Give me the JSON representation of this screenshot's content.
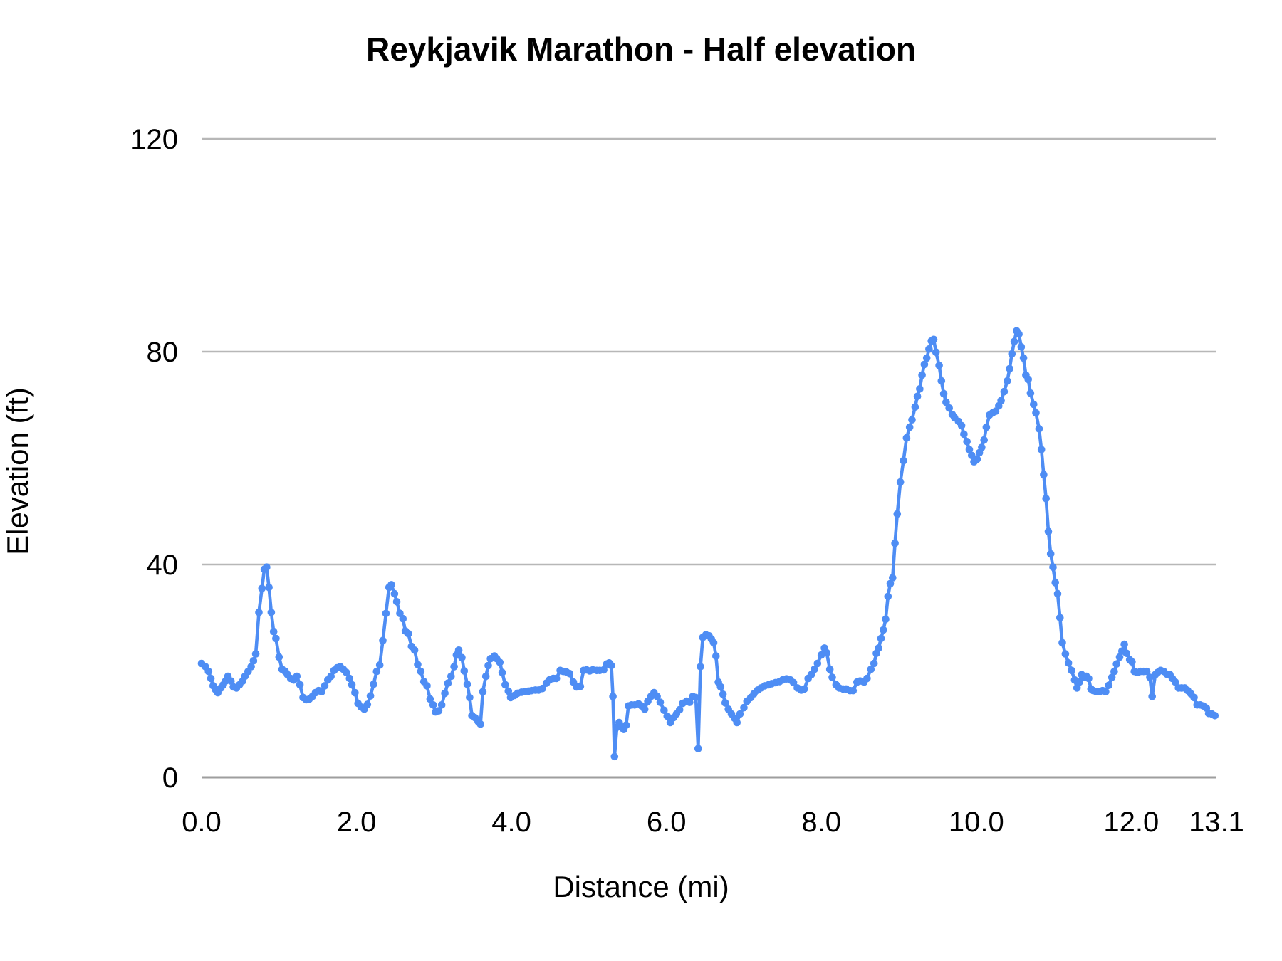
{
  "chart": {
    "title": "Reykjavik Marathon - Half elevation",
    "y_axis": {
      "title": "Elevation (ft)",
      "tick_labels": [
        "0",
        "40",
        "80",
        "120"
      ]
    },
    "x_axis": {
      "title": "Distance (mi)",
      "tick_labels": [
        "0.0",
        "2.0",
        "4.0",
        "6.0",
        "8.0",
        "10.0",
        "12.0",
        "13.1"
      ]
    }
  },
  "chart_data": {
    "type": "line",
    "title": "Reykjavik Marathon - Half elevation",
    "xlabel": "Distance (mi)",
    "ylabel": "Elevation (ft)",
    "xlim": [
      0,
      13.1
    ],
    "ylim": [
      0,
      120
    ],
    "grid": "horizontal-only",
    "legend": "none",
    "marker": "circle",
    "line_color": "#4e8df4",
    "gridline_color": "#b7b7b7",
    "baseline_color": "#9e9e9e",
    "y_gridlines": [
      0,
      40,
      80,
      120
    ],
    "x_ticks": [
      {
        "value": 0.0,
        "label": "0.0"
      },
      {
        "value": 2.0,
        "label": "2.0"
      },
      {
        "value": 4.0,
        "label": "4.0"
      },
      {
        "value": 6.0,
        "label": "6.0"
      },
      {
        "value": 8.0,
        "label": "8.0"
      },
      {
        "value": 10.0,
        "label": "10.0"
      },
      {
        "value": 12.0,
        "label": "12.0"
      },
      {
        "value": 13.1,
        "label": "13.1"
      }
    ],
    "points": [
      [
        0.0,
        21.4
      ],
      [
        0.05,
        20.8
      ],
      [
        0.09,
        19.9
      ],
      [
        0.12,
        18.6
      ],
      [
        0.15,
        17.2
      ],
      [
        0.18,
        16.5
      ],
      [
        0.21,
        15.9
      ],
      [
        0.25,
        16.8
      ],
      [
        0.28,
        17.4
      ],
      [
        0.31,
        18.1
      ],
      [
        0.34,
        19.0
      ],
      [
        0.38,
        18.1
      ],
      [
        0.41,
        17.0
      ],
      [
        0.45,
        16.8
      ],
      [
        0.49,
        17.4
      ],
      [
        0.53,
        18.1
      ],
      [
        0.56,
        19.0
      ],
      [
        0.6,
        19.9
      ],
      [
        0.64,
        20.8
      ],
      [
        0.67,
        21.9
      ],
      [
        0.7,
        23.2
      ],
      [
        0.74,
        31.0
      ],
      [
        0.78,
        35.5
      ],
      [
        0.81,
        39.1
      ],
      [
        0.84,
        39.5
      ],
      [
        0.87,
        35.7
      ],
      [
        0.9,
        31.0
      ],
      [
        0.93,
        27.4
      ],
      [
        0.96,
        26.1
      ],
      [
        1.0,
        22.6
      ],
      [
        1.04,
        20.3
      ],
      [
        1.08,
        19.9
      ],
      [
        1.11,
        19.3
      ],
      [
        1.15,
        18.6
      ],
      [
        1.19,
        18.3
      ],
      [
        1.23,
        19.0
      ],
      [
        1.27,
        17.4
      ],
      [
        1.31,
        15.0
      ],
      [
        1.35,
        14.6
      ],
      [
        1.39,
        14.7
      ],
      [
        1.43,
        15.2
      ],
      [
        1.47,
        15.9
      ],
      [
        1.51,
        16.3
      ],
      [
        1.55,
        16.1
      ],
      [
        1.59,
        17.2
      ],
      [
        1.63,
        18.3
      ],
      [
        1.67,
        19.0
      ],
      [
        1.71,
        20.1
      ],
      [
        1.75,
        20.6
      ],
      [
        1.79,
        20.8
      ],
      [
        1.83,
        20.3
      ],
      [
        1.87,
        19.7
      ],
      [
        1.91,
        18.6
      ],
      [
        1.94,
        17.4
      ],
      [
        1.98,
        15.9
      ],
      [
        2.02,
        13.9
      ],
      [
        2.06,
        13.2
      ],
      [
        2.1,
        12.8
      ],
      [
        2.14,
        13.7
      ],
      [
        2.18,
        15.3
      ],
      [
        2.22,
        17.5
      ],
      [
        2.26,
        19.9
      ],
      [
        2.3,
        21.1
      ],
      [
        2.34,
        25.7
      ],
      [
        2.38,
        30.8
      ],
      [
        2.42,
        35.7
      ],
      [
        2.45,
        36.2
      ],
      [
        2.49,
        34.5
      ],
      [
        2.52,
        33.0
      ],
      [
        2.56,
        30.8
      ],
      [
        2.6,
        29.8
      ],
      [
        2.63,
        27.5
      ],
      [
        2.67,
        27.0
      ],
      [
        2.71,
        24.6
      ],
      [
        2.75,
        23.9
      ],
      [
        2.79,
        21.2
      ],
      [
        2.83,
        19.9
      ],
      [
        2.87,
        18.0
      ],
      [
        2.91,
        17.2
      ],
      [
        2.95,
        14.7
      ],
      [
        2.99,
        13.6
      ],
      [
        3.02,
        12.3
      ],
      [
        3.06,
        12.5
      ],
      [
        3.1,
        13.6
      ],
      [
        3.14,
        15.8
      ],
      [
        3.18,
        17.7
      ],
      [
        3.22,
        19.0
      ],
      [
        3.26,
        20.8
      ],
      [
        3.29,
        23.0
      ],
      [
        3.32,
        23.9
      ],
      [
        3.36,
        22.5
      ],
      [
        3.39,
        20.0
      ],
      [
        3.43,
        17.5
      ],
      [
        3.46,
        15.0
      ],
      [
        3.49,
        11.6
      ],
      [
        3.53,
        11.2
      ],
      [
        3.57,
        10.5
      ],
      [
        3.6,
        10.0
      ],
      [
        3.63,
        16.1
      ],
      [
        3.67,
        19.0
      ],
      [
        3.7,
        21.0
      ],
      [
        3.73,
        22.3
      ],
      [
        3.78,
        22.8
      ],
      [
        3.81,
        22.3
      ],
      [
        3.85,
        21.6
      ],
      [
        3.88,
        19.7
      ],
      [
        3.92,
        17.4
      ],
      [
        3.96,
        16.2
      ],
      [
        3.99,
        15.0
      ],
      [
        4.04,
        15.4
      ],
      [
        4.08,
        15.8
      ],
      [
        4.13,
        16.0
      ],
      [
        4.17,
        16.1
      ],
      [
        4.22,
        16.2
      ],
      [
        4.26,
        16.3
      ],
      [
        4.31,
        16.4
      ],
      [
        4.35,
        16.4
      ],
      [
        4.4,
        16.7
      ],
      [
        4.45,
        17.7
      ],
      [
        4.49,
        18.3
      ],
      [
        4.54,
        18.6
      ],
      [
        4.58,
        18.6
      ],
      [
        4.63,
        20.1
      ],
      [
        4.67,
        19.9
      ],
      [
        4.71,
        19.8
      ],
      [
        4.75,
        19.5
      ],
      [
        4.8,
        17.9
      ],
      [
        4.84,
        17.0
      ],
      [
        4.89,
        17.1
      ],
      [
        4.93,
        20.1
      ],
      [
        4.97,
        20.2
      ],
      [
        5.01,
        20.0
      ],
      [
        5.05,
        20.2
      ],
      [
        5.1,
        20.1
      ],
      [
        5.14,
        20.1
      ],
      [
        5.19,
        20.2
      ],
      [
        5.23,
        21.3
      ],
      [
        5.26,
        21.5
      ],
      [
        5.29,
        21.0
      ],
      [
        5.31,
        15.2
      ],
      [
        5.33,
        3.9
      ],
      [
        5.36,
        9.4
      ],
      [
        5.39,
        10.3
      ],
      [
        5.42,
        9.4
      ],
      [
        5.45,
        9.0
      ],
      [
        5.48,
        9.8
      ],
      [
        5.51,
        13.4
      ],
      [
        5.55,
        13.6
      ],
      [
        5.59,
        13.6
      ],
      [
        5.64,
        13.8
      ],
      [
        5.68,
        13.4
      ],
      [
        5.72,
        12.8
      ],
      [
        5.76,
        14.3
      ],
      [
        5.8,
        15.2
      ],
      [
        5.84,
        15.9
      ],
      [
        5.88,
        15.2
      ],
      [
        5.92,
        14.1
      ],
      [
        5.97,
        12.6
      ],
      [
        6.01,
        11.5
      ],
      [
        6.05,
        10.3
      ],
      [
        6.09,
        11.2
      ],
      [
        6.13,
        11.9
      ],
      [
        6.17,
        12.7
      ],
      [
        6.21,
        13.9
      ],
      [
        6.26,
        14.3
      ],
      [
        6.3,
        14.1
      ],
      [
        6.34,
        15.2
      ],
      [
        6.38,
        15.0
      ],
      [
        6.41,
        5.4
      ],
      [
        6.44,
        20.8
      ],
      [
        6.47,
        26.3
      ],
      [
        6.51,
        26.8
      ],
      [
        6.55,
        26.6
      ],
      [
        6.58,
        26.0
      ],
      [
        6.61,
        25.3
      ],
      [
        6.64,
        22.8
      ],
      [
        6.67,
        17.9
      ],
      [
        6.7,
        17.0
      ],
      [
        6.73,
        15.6
      ],
      [
        6.76,
        14.0
      ],
      [
        6.8,
        12.8
      ],
      [
        6.84,
        11.9
      ],
      [
        6.88,
        11.1
      ],
      [
        6.91,
        10.3
      ],
      [
        6.95,
        11.9
      ],
      [
        7.0,
        13.1
      ],
      [
        7.04,
        14.3
      ],
      [
        7.09,
        15.0
      ],
      [
        7.13,
        15.7
      ],
      [
        7.18,
        16.4
      ],
      [
        7.22,
        16.8
      ],
      [
        7.27,
        17.2
      ],
      [
        7.32,
        17.4
      ],
      [
        7.36,
        17.6
      ],
      [
        7.41,
        17.8
      ],
      [
        7.46,
        18.0
      ],
      [
        7.5,
        18.3
      ],
      [
        7.55,
        18.5
      ],
      [
        7.6,
        18.3
      ],
      [
        7.64,
        17.8
      ],
      [
        7.69,
        16.8
      ],
      [
        7.74,
        16.4
      ],
      [
        7.78,
        16.6
      ],
      [
        7.83,
        18.6
      ],
      [
        7.87,
        19.3
      ],
      [
        7.91,
        20.3
      ],
      [
        7.95,
        21.4
      ],
      [
        8.0,
        23.0
      ],
      [
        8.04,
        24.3
      ],
      [
        8.07,
        23.4
      ],
      [
        8.11,
        20.3
      ],
      [
        8.14,
        18.8
      ],
      [
        8.19,
        17.4
      ],
      [
        8.23,
        16.8
      ],
      [
        8.28,
        16.6
      ],
      [
        8.32,
        16.6
      ],
      [
        8.37,
        16.3
      ],
      [
        8.41,
        16.3
      ],
      [
        8.46,
        17.9
      ],
      [
        8.5,
        18.1
      ],
      [
        8.55,
        17.9
      ],
      [
        8.59,
        18.6
      ],
      [
        8.64,
        20.3
      ],
      [
        8.68,
        21.4
      ],
      [
        8.71,
        23.3
      ],
      [
        8.74,
        24.3
      ],
      [
        8.77,
        26.1
      ],
      [
        8.8,
        27.7
      ],
      [
        8.83,
        29.7
      ],
      [
        8.86,
        34.0
      ],
      [
        8.89,
        36.4
      ],
      [
        8.92,
        37.5
      ],
      [
        8.95,
        44.0
      ],
      [
        8.98,
        49.5
      ],
      [
        9.02,
        55.5
      ],
      [
        9.06,
        59.5
      ],
      [
        9.1,
        63.8
      ],
      [
        9.14,
        65.8
      ],
      [
        9.17,
        67.2
      ],
      [
        9.21,
        69.6
      ],
      [
        9.24,
        71.6
      ],
      [
        9.27,
        73.0
      ],
      [
        9.3,
        75.6
      ],
      [
        9.33,
        77.6
      ],
      [
        9.36,
        78.8
      ],
      [
        9.39,
        80.5
      ],
      [
        9.42,
        82.0
      ],
      [
        9.45,
        82.3
      ],
      [
        9.48,
        79.9
      ],
      [
        9.52,
        77.4
      ],
      [
        9.55,
        74.5
      ],
      [
        9.58,
        72.1
      ],
      [
        9.61,
        70.5
      ],
      [
        9.65,
        69.4
      ],
      [
        9.69,
        68.2
      ],
      [
        9.72,
        67.6
      ],
      [
        9.77,
        66.9
      ],
      [
        9.81,
        66.1
      ],
      [
        9.84,
        64.5
      ],
      [
        9.88,
        63.1
      ],
      [
        9.91,
        61.6
      ],
      [
        9.94,
        60.5
      ],
      [
        9.97,
        59.3
      ],
      [
        10.01,
        59.8
      ],
      [
        10.04,
        61.0
      ],
      [
        10.07,
        62.0
      ],
      [
        10.1,
        63.4
      ],
      [
        10.13,
        65.8
      ],
      [
        10.17,
        68.1
      ],
      [
        10.21,
        68.5
      ],
      [
        10.25,
        68.8
      ],
      [
        10.29,
        69.8
      ],
      [
        10.32,
        70.8
      ],
      [
        10.36,
        72.5
      ],
      [
        10.4,
        74.5
      ],
      [
        10.43,
        76.8
      ],
      [
        10.46,
        79.6
      ],
      [
        10.49,
        81.9
      ],
      [
        10.52,
        83.9
      ],
      [
        10.55,
        83.3
      ],
      [
        10.58,
        80.9
      ],
      [
        10.61,
        78.8
      ],
      [
        10.64,
        75.6
      ],
      [
        10.67,
        74.8
      ],
      [
        10.7,
        72.2
      ],
      [
        10.74,
        70.1
      ],
      [
        10.77,
        68.5
      ],
      [
        10.81,
        65.5
      ],
      [
        10.84,
        61.6
      ],
      [
        10.87,
        56.9
      ],
      [
        10.9,
        52.4
      ],
      [
        10.93,
        46.2
      ],
      [
        10.96,
        42.0
      ],
      [
        10.99,
        39.5
      ],
      [
        11.02,
        36.6
      ],
      [
        11.05,
        34.5
      ],
      [
        11.08,
        30.0
      ],
      [
        11.11,
        25.3
      ],
      [
        11.15,
        23.2
      ],
      [
        11.19,
        21.5
      ],
      [
        11.23,
        20.1
      ],
      [
        11.27,
        18.3
      ],
      [
        11.3,
        16.8
      ],
      [
        11.33,
        17.9
      ],
      [
        11.36,
        19.3
      ],
      [
        11.39,
        18.8
      ],
      [
        11.42,
        19.0
      ],
      [
        11.45,
        18.6
      ],
      [
        11.48,
        16.6
      ],
      [
        11.51,
        16.3
      ],
      [
        11.55,
        16.1
      ],
      [
        11.59,
        16.1
      ],
      [
        11.63,
        16.3
      ],
      [
        11.67,
        16.1
      ],
      [
        11.71,
        17.3
      ],
      [
        11.75,
        18.8
      ],
      [
        11.78,
        19.9
      ],
      [
        11.81,
        21.3
      ],
      [
        11.85,
        22.6
      ],
      [
        11.88,
        23.7
      ],
      [
        11.91,
        25.0
      ],
      [
        11.94,
        23.3
      ],
      [
        11.98,
        22.1
      ],
      [
        12.01,
        21.7
      ],
      [
        12.04,
        19.9
      ],
      [
        12.08,
        19.7
      ],
      [
        12.12,
        19.9
      ],
      [
        12.16,
        19.9
      ],
      [
        12.2,
        19.9
      ],
      [
        12.24,
        18.8
      ],
      [
        12.27,
        15.2
      ],
      [
        12.31,
        19.3
      ],
      [
        12.34,
        19.7
      ],
      [
        12.38,
        20.1
      ],
      [
        12.42,
        19.9
      ],
      [
        12.46,
        19.4
      ],
      [
        12.5,
        19.3
      ],
      [
        12.53,
        18.6
      ],
      [
        12.57,
        17.9
      ],
      [
        12.61,
        16.8
      ],
      [
        12.65,
        16.8
      ],
      [
        12.69,
        16.8
      ],
      [
        12.73,
        16.3
      ],
      [
        12.77,
        15.7
      ],
      [
        12.81,
        15.0
      ],
      [
        12.85,
        13.6
      ],
      [
        12.89,
        13.6
      ],
      [
        12.93,
        13.4
      ],
      [
        12.97,
        13.0
      ],
      [
        13.0,
        12.0
      ],
      [
        13.04,
        11.9
      ],
      [
        13.08,
        11.6
      ]
    ]
  }
}
